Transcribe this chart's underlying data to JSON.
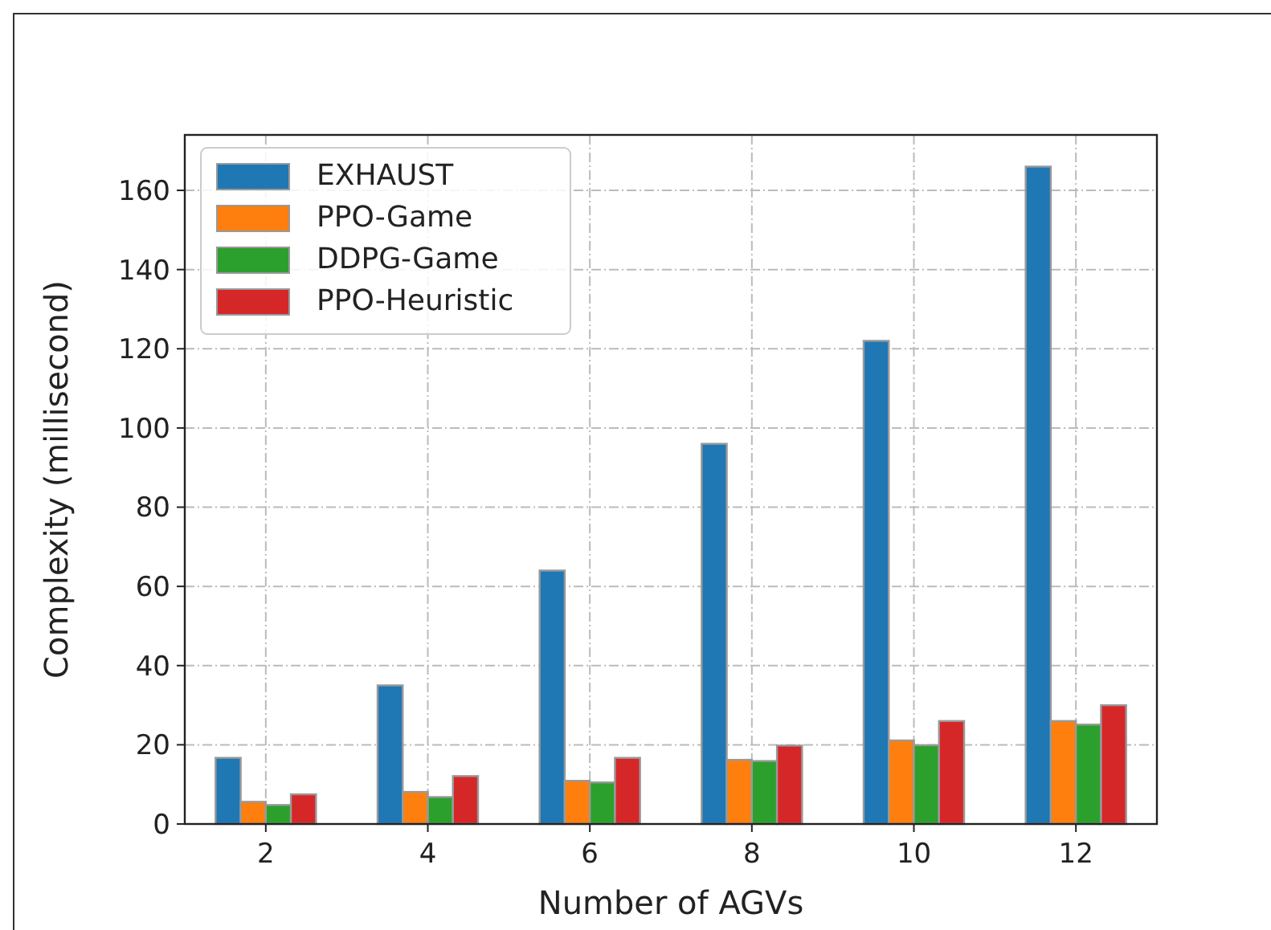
{
  "chart_data": {
    "type": "bar",
    "xlabel": "Number of AGVs",
    "ylabel": "Complexity (millisecond)",
    "categories": [
      "2",
      "4",
      "6",
      "8",
      "10",
      "12"
    ],
    "series": [
      {
        "name": "EXHAUST",
        "color": "#1f77b4",
        "values": [
          16.7,
          35,
          64,
          96,
          122,
          166
        ]
      },
      {
        "name": "PPO-Game",
        "color": "#ff7f0e",
        "values": [
          5.6,
          8.1,
          10.9,
          16.2,
          21.1,
          26
        ]
      },
      {
        "name": "DDPG-Game",
        "color": "#2ca02c",
        "values": [
          4.8,
          6.8,
          10.5,
          15.9,
          19.9,
          25.1
        ]
      },
      {
        "name": "PPO-Heuristic",
        "color": "#d62728",
        "values": [
          7.5,
          12.1,
          16.7,
          19.8,
          26,
          30
        ]
      }
    ],
    "ylim": [
      0,
      174
    ],
    "yticks": [
      0,
      20,
      40,
      60,
      80,
      100,
      120,
      140,
      160
    ],
    "grid": true,
    "legend": "top left"
  }
}
